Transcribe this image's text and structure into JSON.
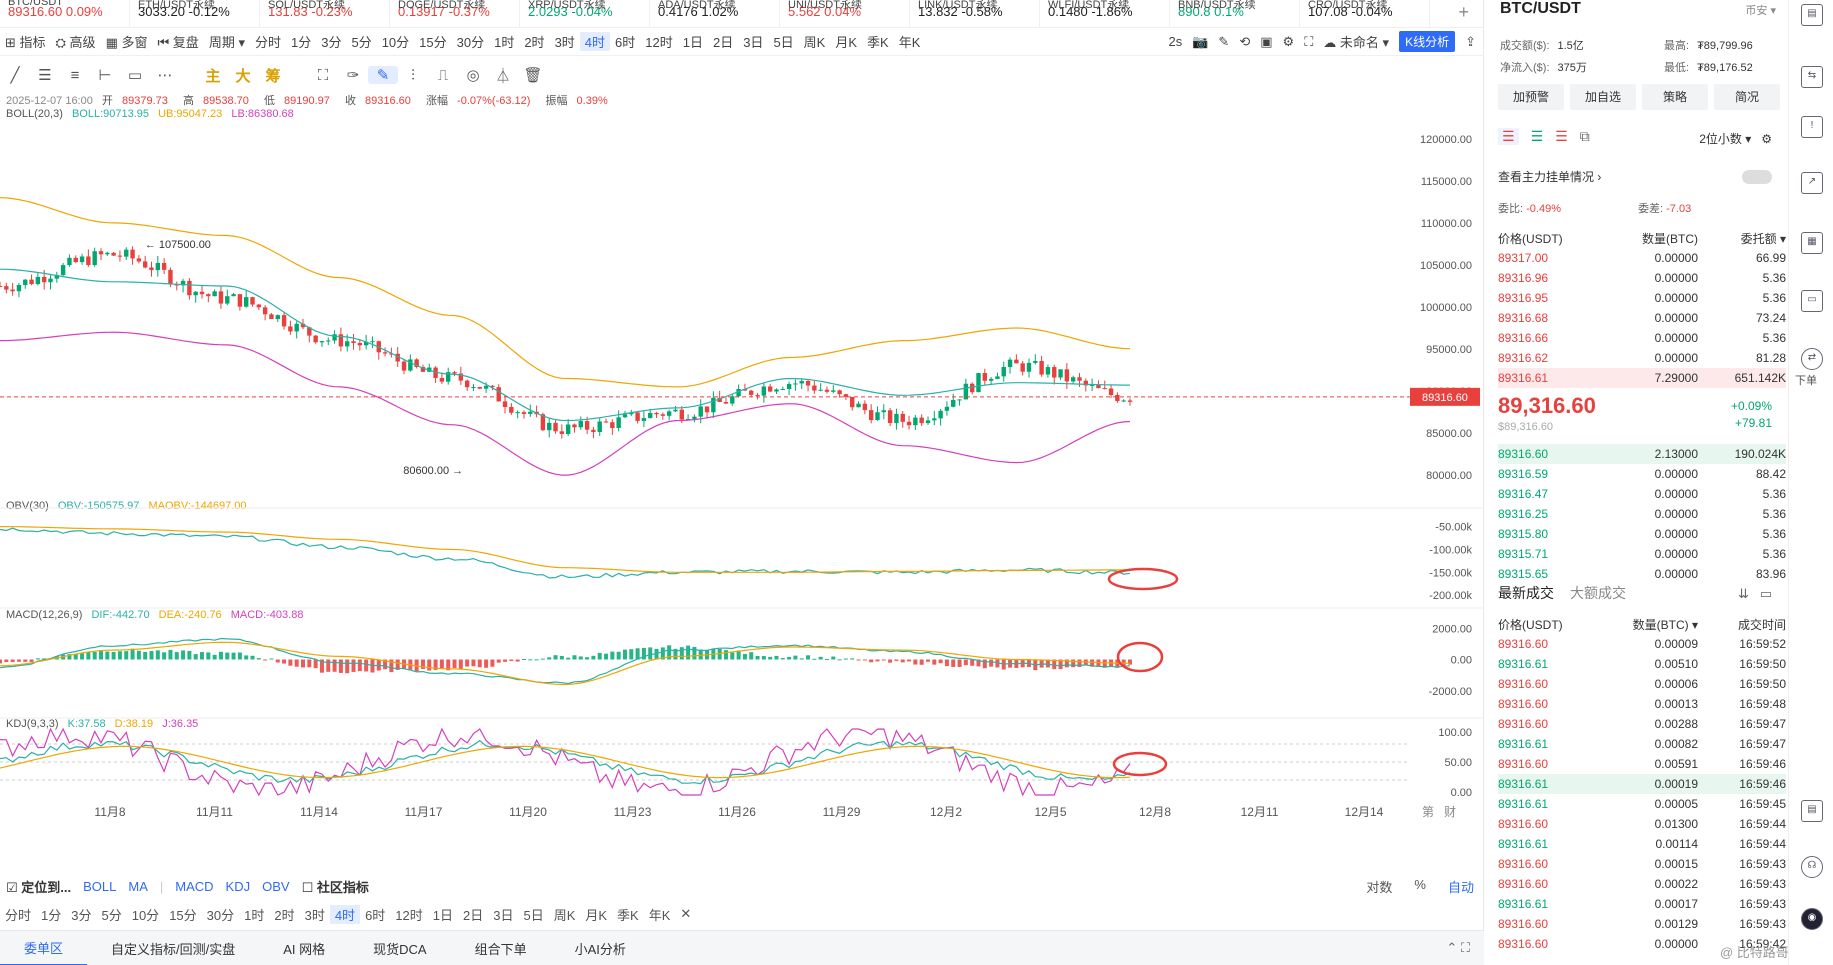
{
  "ticker": [
    {
      "name": "BTC/USDT",
      "value": "89316.60",
      "change": "0.09%",
      "dir": "dn"
    },
    {
      "name": "ETH/USDT永续",
      "value": "3033.20",
      "change": "-0.12%",
      "dir": "dk"
    },
    {
      "name": "SOL/USDT永续",
      "value": "131.83",
      "change": "-0.23%",
      "dir": "dn"
    },
    {
      "name": "DOGE/USDT永续",
      "value": "0.13917",
      "change": "-0.37%",
      "dir": "dn"
    },
    {
      "name": "XRP/USDT永续",
      "value": "2.0293",
      "change": "-0.04%",
      "dir": "up"
    },
    {
      "name": "ADA/USDT永续",
      "value": "0.4176",
      "change": "1.02%",
      "dir": "dk"
    },
    {
      "name": "UNI/USDT永续",
      "value": "5.562",
      "change": "0.04%",
      "dir": "dn"
    },
    {
      "name": "LINK/USDT永续",
      "value": "13.832",
      "change": "-0.58%",
      "dir": "dk"
    },
    {
      "name": "WLFI/USDT永续",
      "value": "0.1480",
      "change": "-1.86%",
      "dir": "dk"
    },
    {
      "name": "BNB/USDT永续",
      "value": "890.8",
      "change": "0.1%",
      "dir": "up"
    },
    {
      "name": "CRO/USDT永续",
      "value": "107.08",
      "change": "-0.04%",
      "dir": "dk"
    }
  ],
  "toolbar1": {
    "left": [
      "指标",
      "高级",
      "多窗",
      "复盘",
      "周期"
    ],
    "periods": [
      "分时",
      "1分",
      "3分",
      "5分",
      "10分",
      "15分",
      "30分",
      "1时",
      "2时",
      "3时",
      "4时",
      "6时",
      "12时",
      "1日",
      "2日",
      "3日",
      "5日",
      "周K",
      "月K",
      "季K",
      "年K"
    ],
    "selected": "4时",
    "refresh": "2s",
    "layout_name": "未命名",
    "kline_analysis": "K线分析"
  },
  "toolbar2": {
    "tools": [
      "line-tool",
      "hline-tool",
      "channel-tool",
      "ray-tool",
      "rect-tool",
      "more-tool"
    ],
    "labels": [
      "主",
      "大",
      "筹"
    ],
    "tools2": [
      "brush-tool",
      "ruler-tool",
      "pencil-tool",
      "pattern-tool",
      "fib-tool",
      "draw-tool",
      "filter-tool",
      "delete-tool"
    ]
  },
  "info": {
    "date": "2025-12-07 16:00",
    "open_label": "开",
    "open": "89379.73",
    "high_label": "高",
    "high": "89538.70",
    "low_label": "低",
    "low": "89190.97",
    "close_label": "收",
    "close": "89316.60",
    "chg_label": "涨幅",
    "chg": "-0.07%(-63.12)",
    "amp_label": "振幅",
    "amp": "0.39%",
    "boll_name": "BOLL(20,3)",
    "boll": "BOLL:90713.95",
    "ub": "UB:95047.23",
    "lb": "LB:86380.68",
    "obv_name": "OBV(30)",
    "obv": "OBV:-150575.97",
    "maobv": "MAOBV:-144697.00",
    "macd_name": "MACD(12,26,9)",
    "dif": "DIF:-442.70",
    "dea": "DEA:-240.76",
    "macd": "MACD:-403.88",
    "kdj_name": "KDJ(9,3,3)",
    "k": "K:37.58",
    "d": "D:38.19",
    "j": "J:36.35"
  },
  "price_axis": [
    "120000.00",
    "115000.00",
    "110000.00",
    "105000.00",
    "100000.00",
    "95000.00",
    "90000.00",
    "85000.00",
    "80000.00"
  ],
  "obv_axis": [
    "-50.00k",
    "-100.00k",
    "-150.00k",
    "-200.00k"
  ],
  "macd_axis": [
    "2000.00",
    "0.00",
    "-2000.00"
  ],
  "kdj_axis": [
    "100.00",
    "50.00",
    "0.00"
  ],
  "date_axis": [
    "11月8",
    "11月11",
    "11月14",
    "11月17",
    "11月20",
    "11月23",
    "11月26",
    "11月29",
    "12月2",
    "12月5",
    "12月8",
    "12月11",
    "12月14"
  ],
  "axis_corner": [
    "第",
    "财"
  ],
  "high_mark": "107500.00",
  "low_mark": "80600.00",
  "current_price_tag": "89316.60",
  "colors": {
    "up": "#00a870",
    "down": "#e8403c",
    "accent": "#2e6bf6",
    "boll_mid": "#2ab0a8",
    "boll_band": "#f0a500",
    "boll_low": "#d43fbd"
  },
  "chart_data": {
    "type": "candlestick",
    "title": "BTC/USDT",
    "period": "4时",
    "ylim": [
      78000,
      122000
    ],
    "x_dates": [
      "11月8",
      "11月11",
      "11月14",
      "11月17",
      "11月20",
      "11月23",
      "11月26",
      "11月29",
      "12月2",
      "12月5",
      "12月8"
    ],
    "close_trend": [
      102500,
      106200,
      101000,
      96000,
      91500,
      85500,
      87500,
      91000,
      86500,
      93000,
      89316.6
    ],
    "boll_upper": [
      113000,
      110000,
      108500,
      103500,
      99000,
      91500,
      90500,
      94000,
      96000,
      97500,
      95047.23
    ],
    "boll_mid": [
      104500,
      103000,
      102500,
      96500,
      92000,
      86500,
      88000,
      91500,
      89500,
      91000,
      90713.95
    ],
    "boll_lower": [
      96000,
      97000,
      95500,
      90500,
      86000,
      80000,
      86500,
      88500,
      83500,
      81500,
      86380.68
    ],
    "annotations": {
      "high": 107500.0,
      "low": 80600.0,
      "last": 89316.6
    },
    "indicators": {
      "obv": {
        "name": "OBV(30)",
        "last": -150575.97,
        "ma": -144697.0,
        "axis": [
          "-50.00k",
          "-100.00k",
          "-150.00k",
          "-200.00k"
        ]
      },
      "macd": {
        "name": "MACD(12,26,9)",
        "dif": -442.7,
        "dea": -240.76,
        "macd": -403.88,
        "axis": [
          "2000.00",
          "0.00",
          "-2000.00"
        ]
      },
      "kdj": {
        "name": "KDJ(9,3,3)",
        "k": 37.58,
        "d": 38.19,
        "j": 36.35,
        "axis": [
          "100.00",
          "50.00",
          "0.00"
        ]
      }
    }
  },
  "bottom1": {
    "locate": "定位到...",
    "indicators": [
      "BOLL",
      "MA",
      "MACD",
      "KDJ",
      "OBV"
    ],
    "community": "社区指标",
    "right": [
      "对数",
      "%",
      "自动"
    ]
  },
  "bottom2": [
    "分时",
    "1分",
    "3分",
    "5分",
    "10分",
    "15分",
    "30分",
    "1时",
    "2时",
    "3时",
    "4时",
    "6时",
    "12时",
    "1日",
    "2日",
    "3日",
    "5日",
    "周K",
    "月K",
    "季K",
    "年K"
  ],
  "bottom2_selected": "4时",
  "bottom3": [
    "委单区",
    "自定义指标/回测/实盘",
    "AI 网格",
    "现货DCA",
    "组合下单",
    "小AI分析"
  ],
  "right": {
    "pair": "BTC/USDT",
    "exchange": "币安",
    "vol_label": "成交额($):",
    "vol": "1.5亿",
    "high_label": "最高:",
    "high": "₮89,799.96",
    "inflow_label": "净流入($):",
    "inflow": "375万",
    "low_label": "最低:",
    "low": "₮89,176.52",
    "buttons": [
      "加预警",
      "加自选",
      "策略",
      "简况"
    ],
    "precision": "2位小数",
    "main_force": "查看主力挂单情况",
    "ratio_label": "委比:",
    "ratio": "-0.49%",
    "diff_label": "委差:",
    "diff": "-7.03",
    "ob_headers": [
      "价格(USDT)",
      "数量(BTC)",
      "委托额"
    ],
    "asks": [
      [
        "89317.00",
        "0.00000",
        "66.99"
      ],
      [
        "89316.96",
        "0.00000",
        "5.36"
      ],
      [
        "89316.95",
        "0.00000",
        "5.36"
      ],
      [
        "89316.68",
        "0.00000",
        "73.24"
      ],
      [
        "89316.66",
        "0.00000",
        "5.36"
      ],
      [
        "89316.62",
        "0.00000",
        "81.28"
      ],
      [
        "89316.61",
        "7.29000",
        "651.142K"
      ]
    ],
    "last_price": "89,316.60",
    "last_price_usd": "$89,316.60",
    "pct_change": "+0.09%",
    "abs_change": "+79.81",
    "bids": [
      [
        "89316.60",
        "2.13000",
        "190.024K"
      ],
      [
        "89316.59",
        "0.00000",
        "88.42"
      ],
      [
        "89316.47",
        "0.00000",
        "5.36"
      ],
      [
        "89316.25",
        "0.00000",
        "5.36"
      ],
      [
        "89315.80",
        "0.00000",
        "5.36"
      ],
      [
        "89315.71",
        "0.00000",
        "5.36"
      ],
      [
        "89315.65",
        "0.00000",
        "83.96"
      ]
    ],
    "trade_tabs": [
      "最新成交",
      "大额成交"
    ],
    "trade_headers": [
      "价格(USDT)",
      "数量(BTC)",
      "成交时间"
    ],
    "trades": [
      [
        "89316.60",
        "0.00009",
        "16:59:52",
        "dn"
      ],
      [
        "89316.61",
        "0.00510",
        "16:59:50",
        "up"
      ],
      [
        "89316.60",
        "0.00006",
        "16:59:50",
        "dn"
      ],
      [
        "89316.60",
        "0.00013",
        "16:59:48",
        "dn"
      ],
      [
        "89316.60",
        "0.00288",
        "16:59:47",
        "dn"
      ],
      [
        "89316.61",
        "0.00082",
        "16:59:47",
        "up"
      ],
      [
        "89316.60",
        "0.00591",
        "16:59:46",
        "dn"
      ],
      [
        "89316.61",
        "0.00019",
        "16:59:46",
        "up"
      ],
      [
        "89316.61",
        "0.00005",
        "16:59:45",
        "up"
      ],
      [
        "89316.60",
        "0.01300",
        "16:59:44",
        "dn"
      ],
      [
        "89316.61",
        "0.00114",
        "16:59:44",
        "up"
      ],
      [
        "89316.60",
        "0.00015",
        "16:59:43",
        "dn"
      ],
      [
        "89316.60",
        "0.00022",
        "16:59:43",
        "dn"
      ],
      [
        "89316.61",
        "0.00017",
        "16:59:43",
        "up"
      ],
      [
        "89316.60",
        "0.00129",
        "16:59:43",
        "dn"
      ],
      [
        "89316.60",
        "0.00000",
        "16:59:42",
        "dn"
      ]
    ]
  },
  "vtool": {
    "order_label": "下单"
  },
  "watermark": "@ 比特路哥"
}
